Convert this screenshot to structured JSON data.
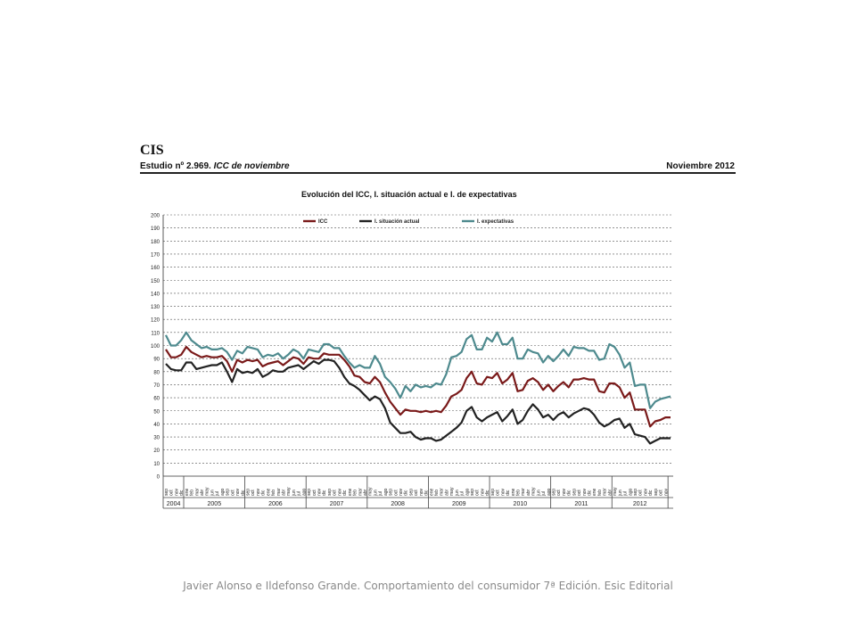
{
  "header": {
    "logo": "CIS",
    "study_prefix": "Estudio nº 2.969. ",
    "study_italic": "ICC de noviembre",
    "date": "Noviembre 2012"
  },
  "chart_data": {
    "type": "line",
    "title": "Evolución del ICC, I. situación actual e I. de expectativas",
    "ylim": [
      0,
      200
    ],
    "yticks": [
      0,
      10,
      20,
      30,
      40,
      50,
      60,
      70,
      80,
      90,
      100,
      110,
      120,
      130,
      140,
      150,
      160,
      170,
      180,
      190,
      200
    ],
    "grid": true,
    "legend_position": "top",
    "x_month_labels": [
      "sep",
      "oct",
      "nov",
      "dic",
      "ene",
      "feb",
      "mar",
      "abr",
      "may",
      "jun",
      "jul",
      "ago",
      "sep",
      "oct",
      "nov",
      "dic"
    ],
    "years": [
      {
        "label": "2004",
        "months": 4
      },
      {
        "label": "2005",
        "months": 12
      },
      {
        "label": "2006",
        "months": 12
      },
      {
        "label": "2007",
        "months": 12
      },
      {
        "label": "2008",
        "months": 12
      },
      {
        "label": "2009",
        "months": 12
      },
      {
        "label": "2010",
        "months": 12
      },
      {
        "label": "2011",
        "months": 12
      },
      {
        "label": "2012",
        "months": 11
      }
    ],
    "series": [
      {
        "name": "ICC",
        "color": "#7a1a1a",
        "values": [
          97,
          91,
          91,
          93,
          99,
          95,
          93,
          91,
          92,
          91,
          91,
          92,
          88,
          80,
          89,
          87,
          89,
          88,
          89,
          84,
          86,
          87,
          88,
          85,
          88,
          91,
          90,
          86,
          91,
          90,
          90,
          94,
          93,
          93,
          93,
          89,
          84,
          77,
          76,
          72,
          71,
          76,
          72,
          64,
          57,
          52,
          47,
          51,
          50,
          50,
          49,
          50,
          49,
          50,
          49,
          54,
          61,
          63,
          66,
          75,
          80,
          71,
          70,
          76,
          75,
          79,
          71,
          74,
          79,
          65,
          66,
          73,
          75,
          72,
          66,
          70,
          65,
          69,
          72,
          68,
          74,
          74,
          75,
          74,
          74,
          65,
          64,
          71,
          71,
          68,
          60,
          64,
          51,
          51,
          51,
          38,
          42,
          43,
          45,
          45
        ]
      },
      {
        "name": "I. situación actual",
        "color": "#222222",
        "values": [
          86,
          82,
          81,
          81,
          87,
          87,
          82,
          83,
          84,
          85,
          85,
          87,
          80,
          72,
          82,
          79,
          80,
          79,
          82,
          76,
          78,
          81,
          80,
          80,
          83,
          84,
          85,
          82,
          85,
          88,
          86,
          89,
          89,
          88,
          83,
          76,
          71,
          69,
          66,
          62,
          58,
          61,
          59,
          52,
          41,
          37,
          33,
          33,
          34,
          30,
          28,
          29,
          29,
          27,
          28,
          31,
          34,
          37,
          41,
          50,
          53,
          45,
          42,
          45,
          47,
          49,
          42,
          46,
          51,
          40,
          43,
          50,
          55,
          51,
          45,
          47,
          43,
          47,
          49,
          45,
          48,
          50,
          52,
          51,
          47,
          41,
          38,
          40,
          43,
          44,
          37,
          40,
          32,
          31,
          30,
          25,
          27,
          29,
          29,
          29
        ]
      },
      {
        "name": "I. expectativas",
        "color": "#4e8a8e",
        "values": [
          108,
          100,
          100,
          104,
          110,
          104,
          101,
          98,
          99,
          97,
          97,
          98,
          95,
          89,
          96,
          94,
          99,
          98,
          97,
          91,
          93,
          92,
          94,
          90,
          93,
          97,
          95,
          90,
          97,
          96,
          95,
          101,
          101,
          98,
          98,
          92,
          87,
          83,
          85,
          83,
          83,
          92,
          86,
          76,
          72,
          67,
          60,
          69,
          65,
          70,
          68,
          69,
          68,
          71,
          70,
          78,
          91,
          92,
          95,
          105,
          108,
          97,
          97,
          106,
          103,
          110,
          101,
          101,
          106,
          90,
          90,
          97,
          95,
          94,
          87,
          92,
          88,
          92,
          97,
          92,
          99,
          98,
          98,
          96,
          96,
          89,
          90,
          101,
          99,
          93,
          83,
          87,
          69,
          70,
          70,
          52,
          57,
          59,
          60,
          61
        ]
      }
    ]
  },
  "caption": "Javier Alonso e Ildefonso Grande. Comportamiento del consumidor 7ª Edición. Esic Editorial"
}
